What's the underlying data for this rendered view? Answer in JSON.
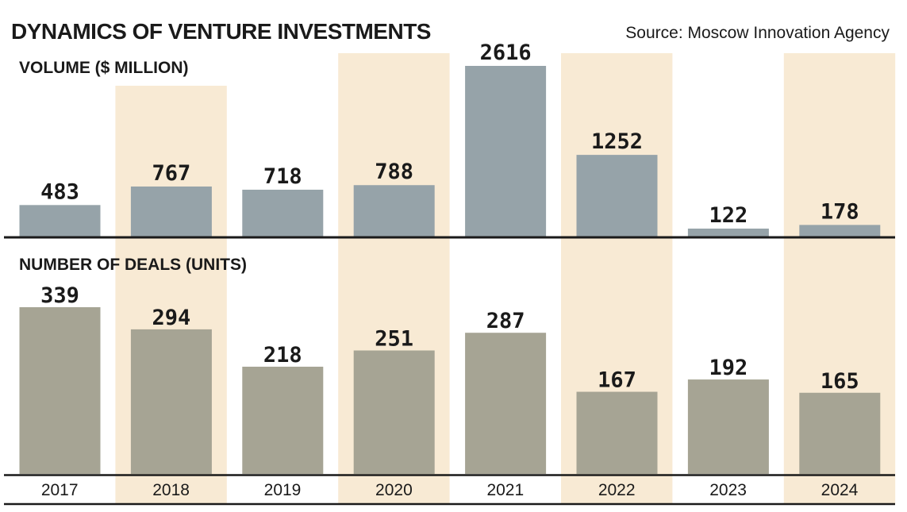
{
  "header": {
    "title": "DYNAMICS OF VENTURE INVESTMENTS",
    "source": "Source: Moscow Innovation Agency"
  },
  "colors": {
    "highlight_band": "#f8ead4",
    "volume_bar": "#96a3a9",
    "deals_bar": "#a6a494",
    "axis_line": "#1a1a1a",
    "text": "#1a1a1a"
  },
  "chart_data": [
    {
      "type": "bar",
      "title": "VOLUME ($ MILLION)",
      "categories": [
        "2017",
        "2018",
        "2019",
        "2020",
        "2021",
        "2022",
        "2023",
        "2024"
      ],
      "values": [
        483,
        767,
        718,
        788,
        2616,
        1252,
        122,
        178
      ],
      "ylim": [
        0,
        2616
      ],
      "grid": false,
      "highlighted_categories": [
        "2018",
        "2020",
        "2022",
        "2024"
      ]
    },
    {
      "type": "bar",
      "title": "NUMBER OF DEALS (UNITS)",
      "categories": [
        "2017",
        "2018",
        "2019",
        "2020",
        "2021",
        "2022",
        "2023",
        "2024"
      ],
      "values": [
        339,
        294,
        218,
        251,
        287,
        167,
        192,
        165
      ],
      "ylim": [
        0,
        339
      ],
      "grid": false,
      "highlighted_categories": [
        "2018",
        "2020",
        "2022",
        "2024"
      ]
    }
  ]
}
